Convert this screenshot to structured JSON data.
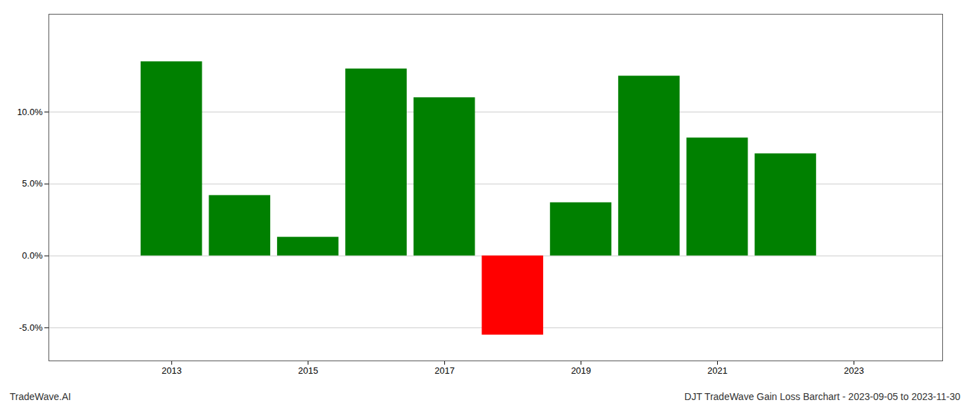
{
  "chart_data": {
    "type": "bar",
    "x": [
      2013,
      2014,
      2015,
      2016,
      2017,
      2018,
      2019,
      2020,
      2021,
      2022
    ],
    "values": [
      0.135,
      0.042,
      0.013,
      0.13,
      0.11,
      -0.055,
      0.037,
      0.125,
      0.082,
      0.071
    ],
    "colors": [
      "#008000",
      "#008000",
      "#008000",
      "#008000",
      "#008000",
      "#ff0000",
      "#008000",
      "#008000",
      "#008000",
      "#008000"
    ],
    "xlim": [
      2011.2,
      2024.3
    ],
    "xticks": [
      2013,
      2015,
      2017,
      2019,
      2021,
      2023
    ],
    "ylim": [
      -0.073,
      0.168
    ],
    "yticks": [
      {
        "value": -0.05,
        "label": "-5.0%"
      },
      {
        "value": 0.0,
        "label": "0.0%"
      },
      {
        "value": 0.05,
        "label": "5.0%"
      },
      {
        "value": 0.1,
        "label": "10.0%"
      }
    ],
    "grid": true,
    "annotations": [
      "TradeWave.AI",
      "DJT TradeWave Gain Loss Barchart - 2023-09-05 to 2023-11-30"
    ]
  }
}
